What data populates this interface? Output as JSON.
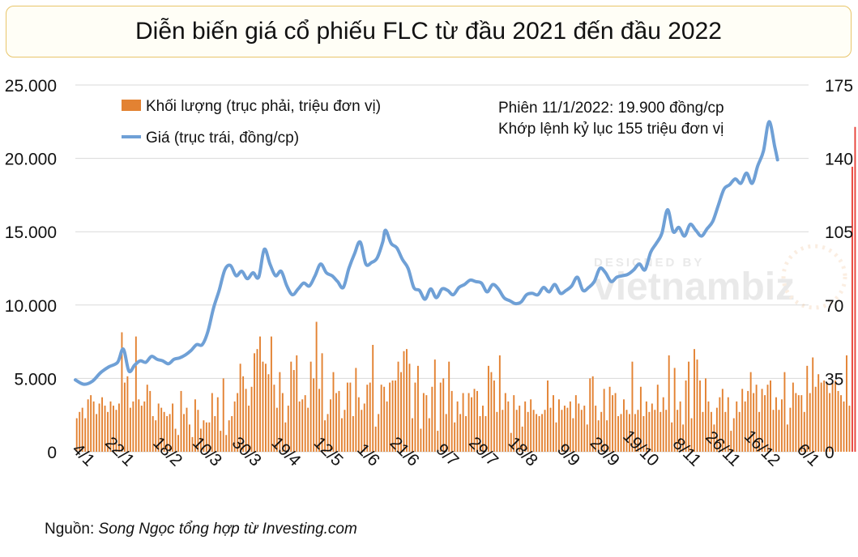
{
  "title": "Diễn biến giá cổ phiếu FLC từ đầu 2021 đến đầu 2022",
  "source": {
    "prefix": "Nguồn: ",
    "text": "Song Ngọc tổng hợp từ Investing.com"
  },
  "annotation": {
    "line1": "Phiên 11/1/2022: 19.900 đồng/cp",
    "line2": "Khớp lệnh kỷ lục 155 triệu đơn vị"
  },
  "watermark": {
    "small": "DESIGNED BY",
    "brand": "vietnambiz"
  },
  "colors": {
    "price_line": "#6fa0d6",
    "volume_bar": "#e38232",
    "record_bar": "#e8433a",
    "grid": "#d9d9d9"
  },
  "chart_data": {
    "type": "bar+line",
    "legend": [
      {
        "label": "Khối lượng (trục phải, triệu đơn vị)",
        "kind": "bar"
      },
      {
        "label": "Giá (trục trái, đồng/cp)",
        "kind": "line"
      }
    ],
    "legend_position": "top-left",
    "grid": true,
    "y_left": {
      "min": 0,
      "max": 25000,
      "ticks": [
        "0",
        "5.000",
        "10.000",
        "15.000",
        "20.000",
        "25.000"
      ]
    },
    "y_right": {
      "min": 0,
      "max": 175,
      "ticks": [
        "0",
        "35",
        "70",
        "105",
        "140",
        "175"
      ]
    },
    "x_tick_labels": [
      "4/1",
      "22/1",
      "18/2",
      "10/3",
      "30/3",
      "19/4",
      "12/5",
      "1/6",
      "21/6",
      "9/7",
      "29/7",
      "18/8",
      "9/9",
      "29/9",
      "19/10",
      "8/11",
      "26/11",
      "16/12",
      "6/1"
    ],
    "x_tick_sessions": [
      0,
      14,
      31,
      45,
      59,
      73,
      88,
      101,
      115,
      129,
      143,
      157,
      172,
      186,
      200,
      215,
      229,
      243,
      257
    ],
    "total_sessions": 260,
    "price_series": {
      "name": "Giá (trục trái, đồng/cp)",
      "points": [
        [
          0,
          4900
        ],
        [
          3,
          4600
        ],
        [
          6,
          4800
        ],
        [
          9,
          5400
        ],
        [
          12,
          5800
        ],
        [
          15,
          6100
        ],
        [
          17,
          7000
        ],
        [
          19,
          5500
        ],
        [
          21,
          5900
        ],
        [
          23,
          6200
        ],
        [
          25,
          6100
        ],
        [
          27,
          6500
        ],
        [
          29,
          6300
        ],
        [
          31,
          6200
        ],
        [
          33,
          6000
        ],
        [
          35,
          6300
        ],
        [
          37,
          6400
        ],
        [
          39,
          6600
        ],
        [
          41,
          6900
        ],
        [
          43,
          7300
        ],
        [
          45,
          7300
        ],
        [
          47,
          8200
        ],
        [
          49,
          9800
        ],
        [
          51,
          11000
        ],
        [
          53,
          12400
        ],
        [
          55,
          12700
        ],
        [
          57,
          12000
        ],
        [
          59,
          12300
        ],
        [
          61,
          11800
        ],
        [
          63,
          12200
        ],
        [
          65,
          11900
        ],
        [
          67,
          13800
        ],
        [
          69,
          12800
        ],
        [
          71,
          12000
        ],
        [
          73,
          12300
        ],
        [
          75,
          11300
        ],
        [
          77,
          10700
        ],
        [
          79,
          11100
        ],
        [
          81,
          11500
        ],
        [
          83,
          11300
        ],
        [
          85,
          12000
        ],
        [
          87,
          12800
        ],
        [
          89,
          12200
        ],
        [
          91,
          12000
        ],
        [
          93,
          11600
        ],
        [
          95,
          11200
        ],
        [
          97,
          12500
        ],
        [
          99,
          13500
        ],
        [
          101,
          14300
        ],
        [
          103,
          12800
        ],
        [
          105,
          12900
        ],
        [
          107,
          13200
        ],
        [
          109,
          14300
        ],
        [
          110,
          15100
        ],
        [
          112,
          14200
        ],
        [
          114,
          13900
        ],
        [
          116,
          13100
        ],
        [
          118,
          12500
        ],
        [
          120,
          11200
        ],
        [
          122,
          11000
        ],
        [
          124,
          10400
        ],
        [
          126,
          11100
        ],
        [
          128,
          10500
        ],
        [
          130,
          11100
        ],
        [
          132,
          11000
        ],
        [
          134,
          10700
        ],
        [
          136,
          11200
        ],
        [
          138,
          11400
        ],
        [
          140,
          11700
        ],
        [
          142,
          11600
        ],
        [
          144,
          11500
        ],
        [
          146,
          10900
        ],
        [
          148,
          11400
        ],
        [
          150,
          11100
        ],
        [
          152,
          10500
        ],
        [
          154,
          10300
        ],
        [
          156,
          10100
        ],
        [
          158,
          10200
        ],
        [
          160,
          10700
        ],
        [
          162,
          10800
        ],
        [
          164,
          10700
        ],
        [
          166,
          11200
        ],
        [
          168,
          10900
        ],
        [
          170,
          11400
        ],
        [
          172,
          10800
        ],
        [
          174,
          11000
        ],
        [
          176,
          11300
        ],
        [
          178,
          11900
        ],
        [
          180,
          11000
        ],
        [
          182,
          11200
        ],
        [
          184,
          11600
        ],
        [
          186,
          12500
        ],
        [
          188,
          12200
        ],
        [
          190,
          11600
        ],
        [
          192,
          11900
        ],
        [
          194,
          12000
        ],
        [
          196,
          12100
        ],
        [
          198,
          12400
        ],
        [
          200,
          12800
        ],
        [
          202,
          12400
        ],
        [
          204,
          13600
        ],
        [
          206,
          14200
        ],
        [
          208,
          14900
        ],
        [
          210,
          16500
        ],
        [
          212,
          15000
        ],
        [
          214,
          15300
        ],
        [
          216,
          14700
        ],
        [
          218,
          15500
        ],
        [
          220,
          15100
        ],
        [
          222,
          14700
        ],
        [
          224,
          15200
        ],
        [
          226,
          15700
        ],
        [
          228,
          16800
        ],
        [
          230,
          17900
        ],
        [
          232,
          18200
        ],
        [
          234,
          18600
        ],
        [
          236,
          18300
        ],
        [
          238,
          19000
        ],
        [
          240,
          18300
        ],
        [
          242,
          19500
        ],
        [
          244,
          20500
        ],
        [
          246,
          22500
        ],
        [
          248,
          20800
        ],
        [
          249,
          19900
        ]
      ]
    },
    "volume_series": {
      "name": "Khối lượng (trục phải, triệu đơn vị)",
      "values": [
        16,
        19,
        21,
        16,
        25,
        27,
        24,
        18,
        23,
        26,
        22,
        19,
        24,
        22,
        20,
        23,
        57,
        33,
        36,
        21,
        24,
        55,
        25,
        22,
        24,
        32,
        29,
        17,
        15,
        23,
        21,
        19,
        17,
        18,
        23,
        11,
        8,
        29,
        18,
        21,
        13,
        7,
        25,
        20,
        11,
        15,
        14,
        14,
        28,
        17,
        26,
        10,
        35,
        8,
        15,
        17,
        24,
        28,
        42,
        36,
        30,
        22,
        31,
        47,
        49,
        55,
        43,
        42,
        37,
        55,
        32,
        21,
        38,
        28,
        14,
        22,
        43,
        39,
        46,
        24,
        25,
        27,
        21,
        43,
        35,
        62,
        30,
        47,
        15,
        18,
        25,
        38,
        28,
        29,
        16,
        20,
        33,
        33,
        17,
        40,
        26,
        20,
        23,
        32,
        33,
        51,
        12,
        18,
        32,
        31,
        24,
        33,
        34,
        34,
        43,
        38,
        48,
        49,
        42,
        16,
        33,
        41,
        11,
        28,
        27,
        16,
        31,
        44,
        10,
        33,
        35,
        18,
        43,
        29,
        14,
        24,
        18,
        28,
        17,
        28,
        26,
        30,
        29,
        17,
        22,
        17,
        41,
        38,
        34,
        19,
        46,
        20,
        28,
        24,
        9,
        27,
        20,
        22,
        12,
        24,
        19,
        25,
        20,
        18,
        17,
        18,
        20,
        34,
        21,
        27,
        14,
        25,
        20,
        22,
        21,
        24,
        16,
        27,
        23,
        20,
        22,
        13,
        35,
        36,
        22,
        15,
        19,
        30,
        15,
        31,
        27,
        28,
        17,
        18,
        25,
        20,
        18,
        43,
        18,
        20,
        31,
        17,
        24,
        19,
        23,
        20,
        32,
        19,
        26,
        20,
        46,
        14,
        40,
        20,
        24,
        13,
        34,
        43,
        16,
        49,
        44,
        34,
        19,
        35,
        24,
        19,
        13,
        21,
        26,
        30,
        19,
        26,
        10,
        16,
        24,
        19,
        30,
        24,
        29,
        38,
        28,
        32,
        19,
        30,
        27,
        32,
        34,
        20,
        26,
        20,
        25,
        38,
        13,
        21,
        33,
        28,
        27,
        27,
        19,
        41,
        28,
        45,
        31,
        37,
        33,
        34,
        33,
        28,
        33,
        34,
        29,
        27,
        24,
        46,
        22,
        136,
        155
      ]
    }
  }
}
